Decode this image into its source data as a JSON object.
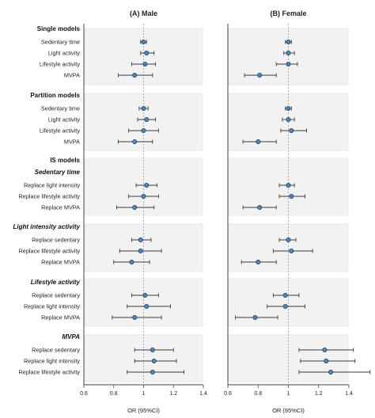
{
  "chart_data": {
    "type": "forest",
    "panels": [
      "(A) Male",
      "(B) Female"
    ],
    "x_ticks": [
      "0.6",
      "0.8",
      "1",
      "1.2",
      "1.4"
    ],
    "xlim": [
      0.6,
      1.4
    ],
    "reference_line": 1,
    "xlabel": "OR (95%CI)",
    "groups": [
      {
        "title": "Single models",
        "italic": false,
        "subtitle": "",
        "rows": [
          {
            "label": "Sedentary time",
            "male": [
              1.0,
              0.98,
              1.02
            ],
            "female": [
              1.0,
              0.98,
              1.02
            ]
          },
          {
            "label": "Light activity",
            "male": [
              1.02,
              0.98,
              1.07
            ],
            "female": [
              1.0,
              0.97,
              1.04
            ]
          },
          {
            "label": "Lifestyle activity",
            "male": [
              1.01,
              0.92,
              1.08
            ],
            "female": [
              1.0,
              0.92,
              1.06
            ]
          },
          {
            "label": "MVPA",
            "male": [
              0.94,
              0.83,
              1.06
            ],
            "female": [
              0.81,
              0.71,
              0.92
            ]
          }
        ]
      },
      {
        "title": "Partition models",
        "italic": false,
        "subtitle": "",
        "rows": [
          {
            "label": "Sedentary time",
            "male": [
              1.0,
              0.97,
              1.03
            ],
            "female": [
              1.0,
              0.98,
              1.02
            ]
          },
          {
            "label": "Light activity",
            "male": [
              1.02,
              0.96,
              1.08
            ],
            "female": [
              1.0,
              0.96,
              1.04
            ]
          },
          {
            "label": "Lifestyle activity",
            "male": [
              1.0,
              0.9,
              1.1
            ],
            "female": [
              1.02,
              0.95,
              1.12
            ]
          },
          {
            "label": "MVPA",
            "male": [
              0.94,
              0.83,
              1.06
            ],
            "female": [
              0.8,
              0.7,
              0.92
            ]
          }
        ]
      },
      {
        "title": "IS models",
        "italic": false,
        "subtitle": "Sedentary time",
        "rows": [
          {
            "label": "Replace light intensity",
            "male": [
              1.02,
              0.95,
              1.09
            ],
            "female": [
              1.0,
              0.94,
              1.04
            ]
          },
          {
            "label": "Replace lifestyle activity",
            "male": [
              1.0,
              0.9,
              1.1
            ],
            "female": [
              1.02,
              0.94,
              1.11
            ]
          },
          {
            "label": "Replace MVPA",
            "male": [
              0.94,
              0.82,
              1.07
            ],
            "female": [
              0.81,
              0.7,
              0.92
            ]
          }
        ]
      },
      {
        "title": "Light intensity activity",
        "italic": true,
        "subtitle": "",
        "rows": [
          {
            "label": "Replace sedentary",
            "male": [
              0.98,
              0.92,
              1.05
            ],
            "female": [
              1.0,
              0.94,
              1.05
            ]
          },
          {
            "label": "Replace lifestyle activity",
            "male": [
              0.98,
              0.84,
              1.12
            ],
            "female": [
              1.02,
              0.9,
              1.16
            ]
          },
          {
            "label": "Replace MVPA",
            "male": [
              0.92,
              0.8,
              1.04
            ],
            "female": [
              0.8,
              0.69,
              0.92
            ]
          }
        ]
      },
      {
        "title": "Lifestyle activity",
        "italic": true,
        "subtitle": "",
        "rows": [
          {
            "label": "Replace sedentary",
            "male": [
              1.01,
              0.92,
              1.1
            ],
            "female": [
              0.98,
              0.9,
              1.07
            ]
          },
          {
            "label": "Replace light intensity",
            "male": [
              1.02,
              0.89,
              1.18
            ],
            "female": [
              0.98,
              0.86,
              1.11
            ]
          },
          {
            "label": "Replace MVPA",
            "male": [
              0.94,
              0.79,
              1.12
            ],
            "female": [
              0.78,
              0.65,
              0.93
            ]
          }
        ]
      },
      {
        "title": "MVPA",
        "italic": true,
        "subtitle": "",
        "rows": [
          {
            "label": "Replace sedentary",
            "male": [
              1.06,
              0.94,
              1.2
            ],
            "female": [
              1.24,
              1.07,
              1.43
            ]
          },
          {
            "label": "Replace light intensity",
            "male": [
              1.07,
              0.94,
              1.22
            ],
            "female": [
              1.25,
              1.08,
              1.44
            ]
          },
          {
            "label": "Replace lifestyle activity",
            "male": [
              1.06,
              0.89,
              1.27
            ],
            "female": [
              1.28,
              1.07,
              1.54
            ]
          }
        ]
      }
    ]
  }
}
